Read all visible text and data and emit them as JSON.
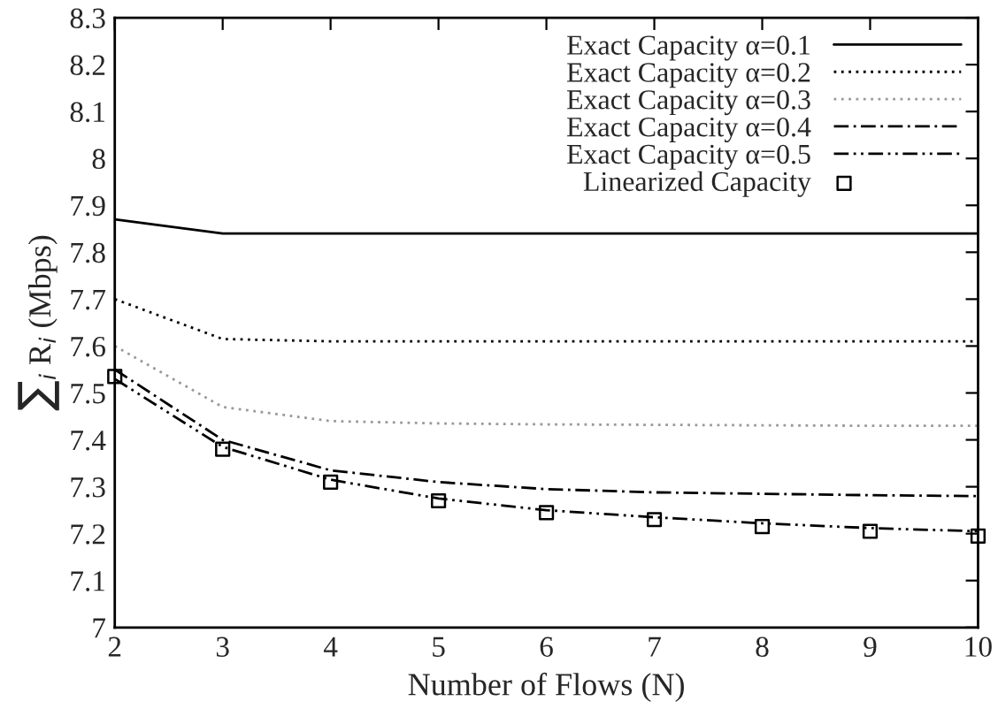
{
  "chart_data": {
    "type": "line",
    "xlabel": "Number of Flows (N)",
    "ylabel": "∑$_{i}$ R$_{i}$ (Mbps)",
    "x": [
      2,
      3,
      4,
      5,
      6,
      7,
      8,
      9,
      10
    ],
    "xlim": [
      2,
      10
    ],
    "xticks": [
      2,
      3,
      4,
      5,
      6,
      7,
      8,
      9,
      10
    ],
    "ylim": [
      7,
      8.3
    ],
    "yticks": [
      7,
      7.1,
      7.2,
      7.3,
      7.4,
      7.5,
      7.6,
      7.7,
      7.8,
      7.9,
      8,
      8.1,
      8.2,
      8.3
    ],
    "grid": false,
    "legend": "top right",
    "series": [
      {
        "name": "Exact Capacity α=0.1",
        "color": "#000000",
        "line_style": "solid",
        "marker": "none",
        "values": [
          7.87,
          7.84,
          7.84,
          7.84,
          7.84,
          7.84,
          7.84,
          7.84,
          7.84
        ]
      },
      {
        "name": "Exact Capacity α=0.2",
        "color": "#000000",
        "line_style": "dotted",
        "marker": "none",
        "values": [
          7.7,
          7.615,
          7.61,
          7.61,
          7.61,
          7.61,
          7.61,
          7.61,
          7.61
        ]
      },
      {
        "name": "Exact Capacity α=0.3",
        "color": "#999999",
        "line_style": "dotted",
        "marker": "none",
        "values": [
          7.6,
          7.47,
          7.44,
          7.435,
          7.433,
          7.432,
          7.431,
          7.43,
          7.43
        ]
      },
      {
        "name": "Exact Capacity α=0.4",
        "color": "#000000",
        "line_style": "dashdot",
        "marker": "none",
        "values": [
          7.55,
          7.4,
          7.335,
          7.31,
          7.295,
          7.288,
          7.285,
          7.282,
          7.28
        ]
      },
      {
        "name": "Exact Capacity α=0.5",
        "color": "#000000",
        "line_style": "dashdotdot",
        "marker": "none",
        "values": [
          7.53,
          7.385,
          7.315,
          7.275,
          7.25,
          7.235,
          7.222,
          7.212,
          7.205
        ]
      },
      {
        "name": "Linearized Capacity",
        "type": "scatter",
        "color": "#000000",
        "marker": "square",
        "values": [
          7.535,
          7.38,
          7.31,
          7.27,
          7.245,
          7.23,
          7.215,
          7.205,
          7.195
        ]
      }
    ]
  }
}
